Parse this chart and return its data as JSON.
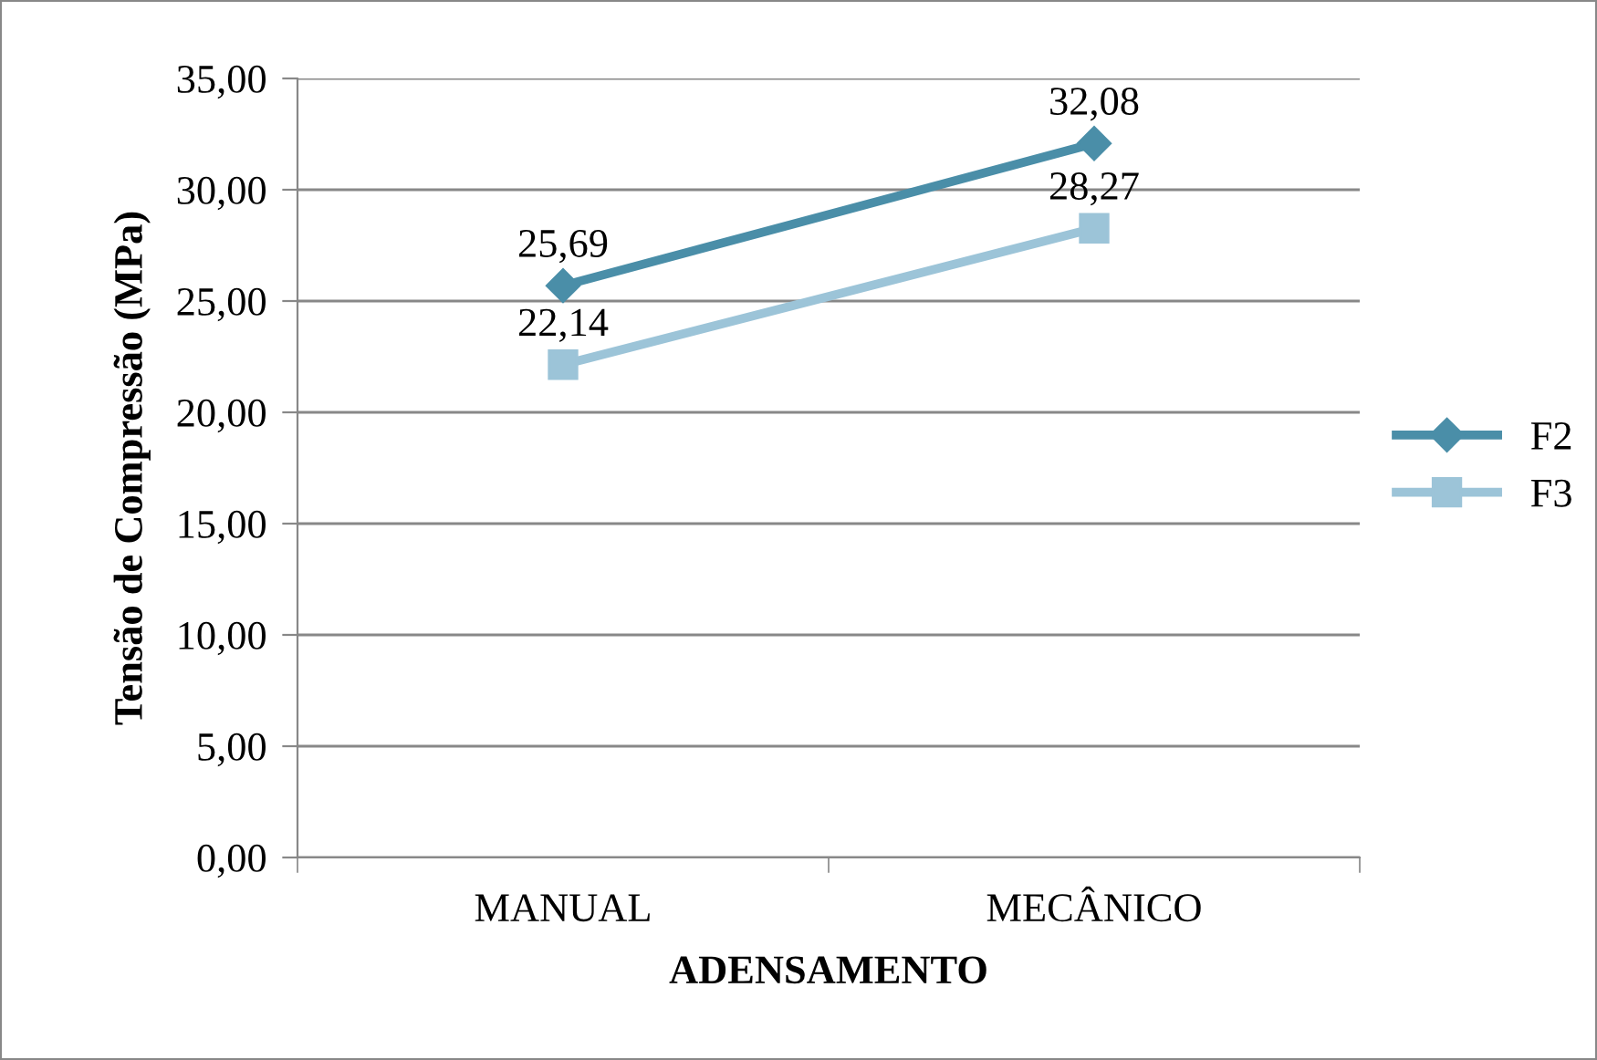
{
  "chart_data": {
    "type": "line",
    "xlabel": "ADENSAMENTO",
    "ylabel": "Tensão de Compressão (MPa)",
    "categories": [
      "MANUAL",
      "MECÂNICO"
    ],
    "series": [
      {
        "name": "F2",
        "color": "#4a8ea8",
        "values": [
          25.69,
          32.08
        ],
        "marker": "diamond",
        "value_labels": [
          "25,69",
          "32,08"
        ]
      },
      {
        "name": "F3",
        "color": "#9cc4d8",
        "values": [
          22.14,
          28.27
        ],
        "marker": "square",
        "value_labels": [
          "22,14",
          "28,27"
        ]
      }
    ],
    "ylim": [
      0,
      35
    ],
    "yticks": [
      {
        "value": 0,
        "label": "0,00"
      },
      {
        "value": 5,
        "label": "5,00"
      },
      {
        "value": 10,
        "label": "10,00"
      },
      {
        "value": 15,
        "label": "15,00"
      },
      {
        "value": 20,
        "label": "20,00"
      },
      {
        "value": 25,
        "label": "25,00"
      },
      {
        "value": 30,
        "label": "30,00"
      },
      {
        "value": 35,
        "label": "35,00"
      }
    ],
    "grid": "y",
    "legend": "right",
    "line_style": "solid"
  }
}
